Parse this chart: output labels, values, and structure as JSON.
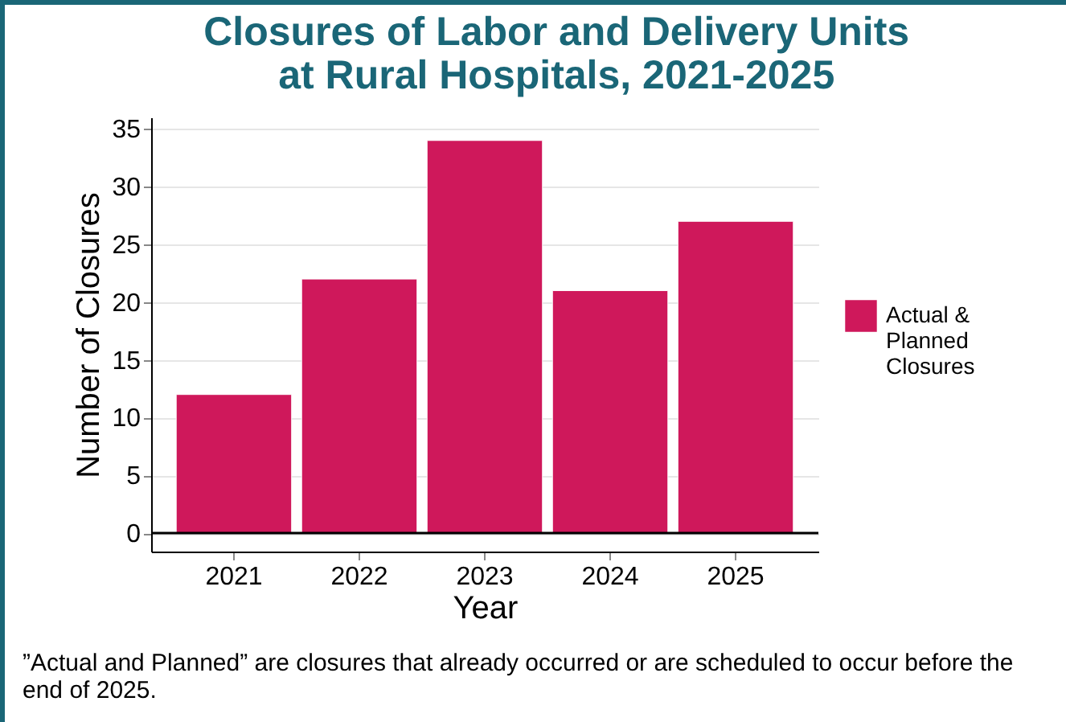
{
  "chart_data": {
    "type": "bar",
    "title": "Closures of Labor and Delivery Units\nat Rural Hospitals, 2021-2025",
    "xlabel": "Year",
    "ylabel": "Number of Closures",
    "categories": [
      "2021",
      "2022",
      "2023",
      "2024",
      "2025"
    ],
    "series": [
      {
        "name": "Actual & Planned Closures",
        "color": "#cf185b",
        "values": [
          12,
          22,
          34,
          21,
          27
        ]
      }
    ],
    "ylim": [
      -1.6,
      36
    ],
    "yticks": [
      0,
      5,
      10,
      15,
      20,
      25,
      30,
      35
    ],
    "grid": "y",
    "legend": "right",
    "ref_lines": [
      {
        "axis": "y",
        "value": 0,
        "color": "#000000"
      }
    ],
    "annotations": [
      "”Actual and Planned” are closures that already occurred or are scheduled to occur before the end of 2025."
    ]
  }
}
